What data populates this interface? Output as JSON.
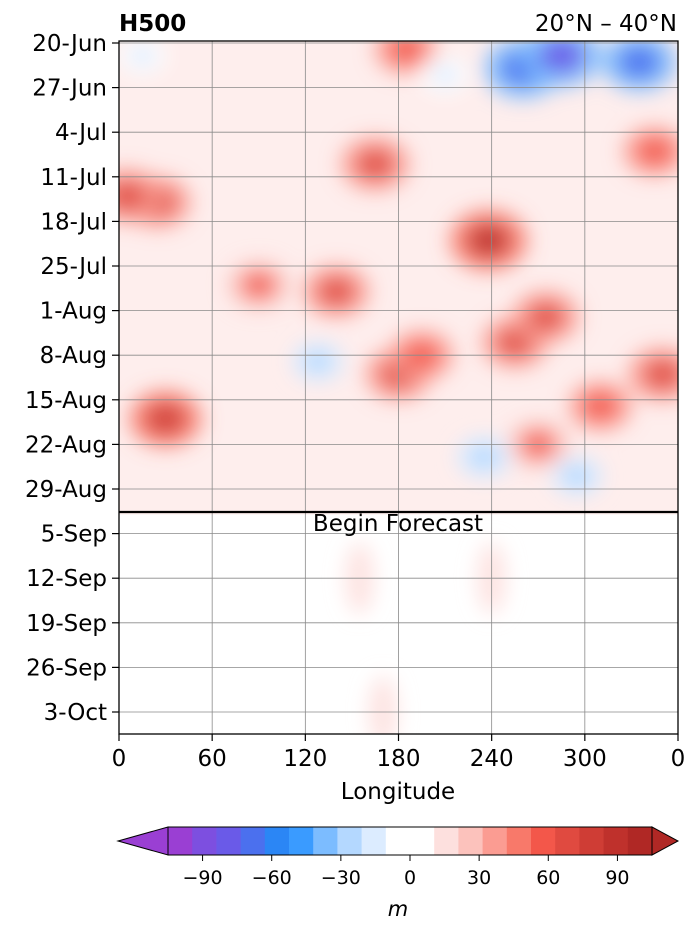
{
  "chart_data": {
    "type": "heatmap",
    "title_left": "H500",
    "title_right": "20°N – 40°N",
    "xlabel": "Longitude",
    "ylabel": "",
    "x_ticks": [
      "0",
      "60",
      "120",
      "180",
      "240",
      "300",
      "0"
    ],
    "y_ticks": [
      "20-Jun",
      "27-Jun",
      "4-Jul",
      "11-Jul",
      "18-Jul",
      "25-Jul",
      "1-Aug",
      "8-Aug",
      "15-Aug",
      "22-Aug",
      "29-Aug",
      "5-Sep",
      "12-Sep",
      "19-Sep",
      "26-Sep",
      "3-Oct"
    ],
    "xlim": [
      0,
      360
    ],
    "grid": true,
    "annotation": "Begin Forecast",
    "forecast_start": "2-Sep",
    "colorbar": {
      "label": "m",
      "ticks": [
        "−90",
        "−60",
        "−30",
        "0",
        "30",
        "60",
        "90"
      ],
      "min": -105,
      "max": 105,
      "step": 10,
      "extend": "both",
      "colors": [
        "#9a3fd3",
        "#7d4fe0",
        "#6a5ae8",
        "#4b70ee",
        "#2b86f5",
        "#3a9bff",
        "#7cbcff",
        "#b4d8ff",
        "#dcecff",
        "#ffffff",
        "#ffffff",
        "#fde0de",
        "#fcc2bc",
        "#fb9c92",
        "#f8796a",
        "#f3574a",
        "#e04a40",
        "#cf3d35",
        "#bf312c",
        "#b02825"
      ],
      "under_color": "#9a3fd3",
      "over_color": "#b02825"
    },
    "series": [
      {
        "label": "high-anomaly",
        "x": 25,
        "y": "15-Jul",
        "peak_m": 55
      },
      {
        "label": "high-anomaly",
        "x": 30,
        "y": "18-Aug",
        "peak_m": 65
      },
      {
        "label": "high-anomaly",
        "x": 140,
        "y": "29-Jul",
        "peak_m": 55
      },
      {
        "label": "high-anomaly",
        "x": 165,
        "y": "9-Jul",
        "peak_m": 60
      },
      {
        "label": "high-anomaly",
        "x": 180,
        "y": "11-Aug",
        "peak_m": 55
      },
      {
        "label": "high-anomaly",
        "x": 195,
        "y": "8-Aug",
        "peak_m": 50
      },
      {
        "label": "high-anomaly",
        "x": 238,
        "y": "21-Jul",
        "peak_m": 75
      },
      {
        "label": "high-anomaly",
        "x": 255,
        "y": "6-Aug",
        "peak_m": 55
      },
      {
        "label": "high-anomaly",
        "x": 275,
        "y": "2-Aug",
        "peak_m": 55
      },
      {
        "label": "high-anomaly",
        "x": 310,
        "y": "16-Aug",
        "peak_m": 50
      },
      {
        "label": "high-anomaly",
        "x": 345,
        "y": "7-Jul",
        "peak_m": 50
      },
      {
        "label": "high-anomaly",
        "x": 350,
        "y": "11-Aug",
        "peak_m": 60
      },
      {
        "label": "high-anomaly",
        "x": 5,
        "y": "14-Jul",
        "peak_m": 60
      },
      {
        "label": "high-anomaly",
        "x": 90,
        "y": "28-Jul",
        "peak_m": 45
      },
      {
        "label": "high-anomaly",
        "x": 270,
        "y": "22-Aug",
        "peak_m": 45
      },
      {
        "label": "high-anomaly",
        "x": 185,
        "y": "21-Jun",
        "peak_m": 50
      },
      {
        "label": "low-anomaly",
        "x": 260,
        "y": "24-Jun",
        "peak_m": -75
      },
      {
        "label": "low-anomaly",
        "x": 285,
        "y": "22-Jun",
        "peak_m": -80
      },
      {
        "label": "low-anomaly",
        "x": 335,
        "y": "23-Jun",
        "peak_m": -70
      },
      {
        "label": "low-anomaly",
        "x": 15,
        "y": "22-Jun",
        "peak_m": -25
      },
      {
        "label": "low-anomaly",
        "x": 128,
        "y": "9-Aug",
        "peak_m": -30
      },
      {
        "label": "low-anomaly",
        "x": 235,
        "y": "24-Aug",
        "peak_m": -35
      },
      {
        "label": "low-anomaly",
        "x": 295,
        "y": "27-Aug",
        "peak_m": -30
      },
      {
        "label": "low-anomaly",
        "x": 210,
        "y": "25-Jun",
        "peak_m": -25
      }
    ]
  }
}
